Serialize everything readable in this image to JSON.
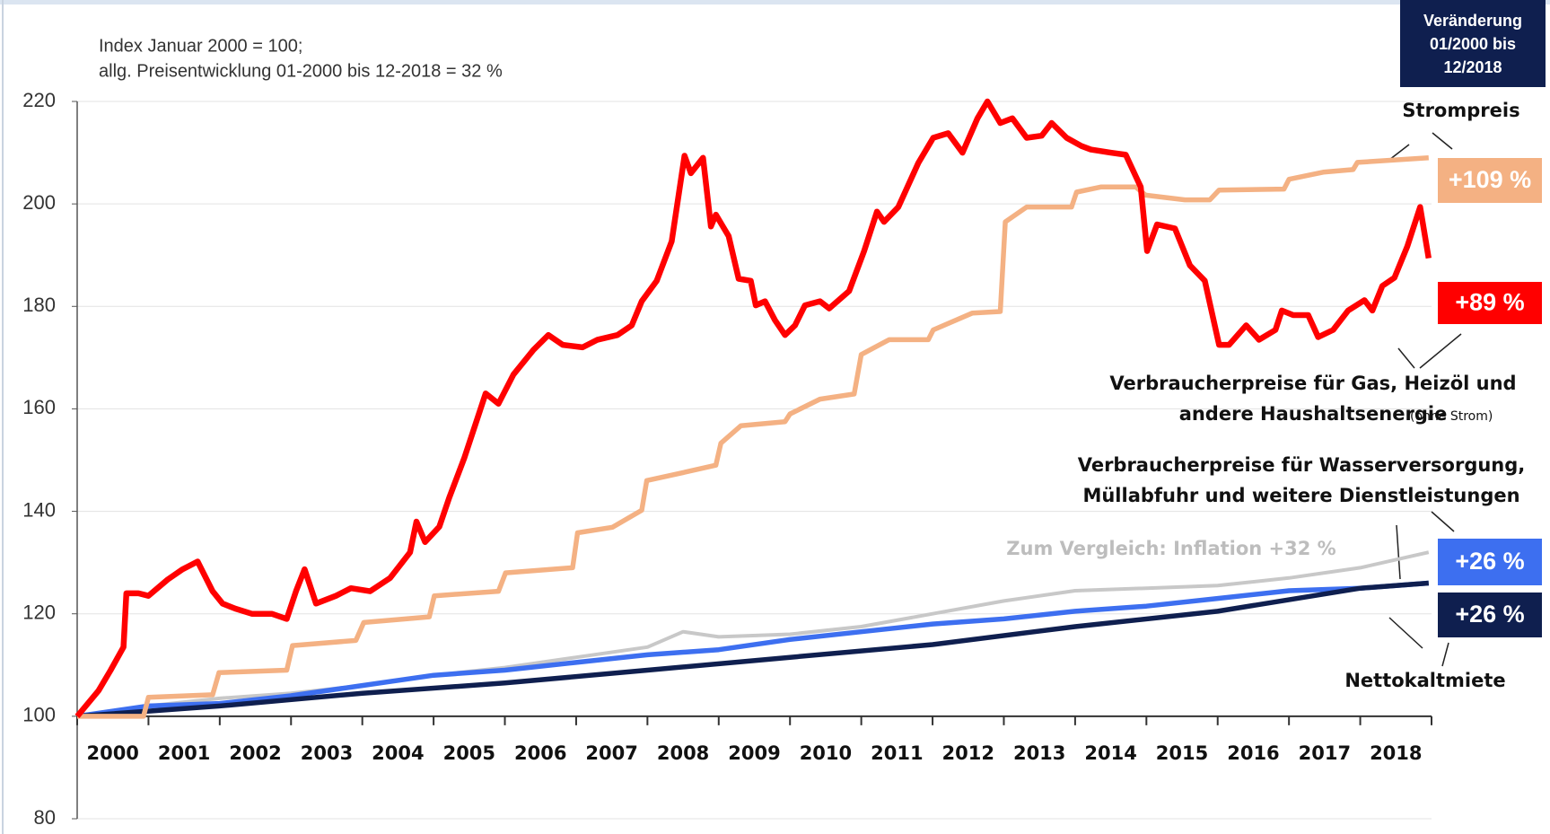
{
  "chart_data": {
    "type": "line",
    "notes": [
      "Index  Januar 2000 = 100;",
      "allg. Preisentwicklung 01-2000 bis 12-2018 = 32 %"
    ],
    "box_title": [
      "Veränderung",
      "01/2000 bis",
      "12/2018"
    ],
    "categories": [
      "2000",
      "2001",
      "2002",
      "2003",
      "2004",
      "2005",
      "2006",
      "2007",
      "2008",
      "2009",
      "2010",
      "2011",
      "2012",
      "2013",
      "2014",
      "2015",
      "2016",
      "2017",
      "2018"
    ],
    "xlim": [
      2000,
      2019
    ],
    "ylim": [
      80,
      220
    ],
    "yticks": [
      80,
      100,
      120,
      140,
      160,
      180,
      200,
      220
    ],
    "series": [
      {
        "name": [
          "Zum Vergleich: Inflation +32 %"
        ],
        "color": "#c8c8c8",
        "x": [
          2000,
          2001,
          2002,
          2003,
          2004,
          2005,
          2006,
          2007,
          2008,
          2008.5,
          2009,
          2010,
          2011,
          2012,
          2013,
          2014,
          2015,
          2016,
          2017,
          2018,
          2018.96
        ],
        "values": [
          100,
          102,
          103.5,
          104.5,
          106,
          108,
          109.5,
          111.5,
          113.5,
          116.5,
          115.5,
          116,
          117.5,
          120,
          122.5,
          124.5,
          125,
          125.5,
          127,
          129,
          132
        ]
      },
      {
        "name": [
          "Verbraucherpreise für  Wasserversorgung,",
          "Müllabfuhr und weitere Dienstleistungen"
        ],
        "color": "#3d6ff0",
        "change_label": "+26 %",
        "x": [
          2000,
          2001,
          2002,
          2003,
          2004,
          2005,
          2006,
          2007,
          2008,
          2009,
          2010,
          2011,
          2012,
          2013,
          2014,
          2015,
          2016,
          2017,
          2018,
          2018.96
        ],
        "values": [
          100,
          102,
          102.5,
          104,
          106,
          108,
          109,
          110.5,
          112,
          113,
          115,
          116.5,
          118,
          119,
          120.5,
          121.5,
          123,
          124.5,
          125,
          126
        ]
      },
      {
        "name": [
          "Nettokaltmiete"
        ],
        "color": "#0f1f4f",
        "change_label": "+26 %",
        "x": [
          2000,
          2002,
          2004,
          2006,
          2008,
          2010,
          2012,
          2014,
          2016,
          2018,
          2018.96
        ],
        "values": [
          100,
          102,
          104.5,
          106.5,
          109,
          111.5,
          114,
          117.5,
          120.5,
          125,
          126
        ]
      },
      {
        "name": [
          "Strompreis"
        ],
        "color": "#f4b183",
        "change_label": "+109 %",
        "x": [
          2000,
          2000.93,
          2001,
          2001.9,
          2001.99,
          2002.94,
          2003.02,
          2003.91,
          2004.02,
          2004.94,
          2005.01,
          2005.91,
          2006.01,
          2006.95,
          2007.02,
          2007.51,
          2007.92,
          2007.99,
          2008.48,
          2008.96,
          2009.03,
          2009.31,
          2009.93,
          2010,
          2010.42,
          2010.9,
          2011,
          2011.39,
          2011.94,
          2012.01,
          2012.56,
          2012.95,
          2013.02,
          2013.32,
          2013.95,
          2014.02,
          2014.36,
          2014.85,
          2014.99,
          2015.54,
          2015.89,
          2016.02,
          2016.93,
          2017,
          2017.48,
          2017.9,
          2017.96,
          2018.96
        ],
        "values": [
          100,
          100,
          103.7,
          104.2,
          108.5,
          109,
          113.8,
          114.8,
          118.3,
          119.4,
          123.5,
          124.4,
          128,
          129,
          135.8,
          136.9,
          140.2,
          146,
          147.5,
          149,
          153.3,
          156.7,
          157.5,
          159,
          161.9,
          162.9,
          170.6,
          173.5,
          173.5,
          175.4,
          178.7,
          179,
          196.5,
          199.4,
          199.4,
          202.3,
          203.3,
          203.3,
          201.7,
          200.8,
          200.8,
          202.7,
          202.9,
          204.8,
          206.2,
          206.7,
          208.1,
          209
        ]
      },
      {
        "name": [
          "Verbraucherpreise für Gas, Heizöl und",
          "andere Haushaltsenergie"
        ],
        "name_note": "(ohne Strom)",
        "color": "#ff0000",
        "change_label": "+89 %",
        "x": [
          2000,
          2000.3,
          2000.47,
          2000.65,
          2000.69,
          2000.86,
          2001,
          2001.27,
          2001.48,
          2001.69,
          2001.9,
          2002.04,
          2002.22,
          2002.45,
          2002.73,
          2002.94,
          2003.07,
          2003.19,
          2003.35,
          2003.63,
          2003.84,
          2004.11,
          2004.39,
          2004.67,
          2004.76,
          2004.88,
          2005.08,
          2005.22,
          2005.43,
          2005.73,
          2005.91,
          2006.12,
          2006.4,
          2006.61,
          2006.81,
          2007.09,
          2007.3,
          2007.58,
          2007.78,
          2007.92,
          2008.13,
          2008.34,
          2008.52,
          2008.61,
          2008.78,
          2008.89,
          2008.96,
          2009.14,
          2009.28,
          2009.45,
          2009.52,
          2009.65,
          2009.79,
          2009.93,
          2010.07,
          2010.21,
          2010.42,
          2010.55,
          2010.83,
          2011.04,
          2011.22,
          2011.32,
          2011.52,
          2011.8,
          2012.01,
          2012.22,
          2012.42,
          2012.63,
          2012.77,
          2012.95,
          2013.12,
          2013.32,
          2013.53,
          2013.67,
          2013.88,
          2014.09,
          2014.22,
          2014.5,
          2014.71,
          2014.92,
          2015.01,
          2015.15,
          2015.4,
          2015.61,
          2015.82,
          2016.02,
          2016.16,
          2016.4,
          2016.58,
          2016.81,
          2016.9,
          2017.06,
          2017.27,
          2017.41,
          2017.62,
          2017.83,
          2018.06,
          2018.17,
          2018.31,
          2018.48,
          2018.66,
          2018.84,
          2018.96
        ],
        "values": [
          100,
          105,
          109,
          113.5,
          124,
          124,
          123.5,
          126.7,
          128.7,
          130.2,
          124.4,
          122,
          121,
          120,
          120,
          119,
          124.4,
          128.7,
          122,
          123.5,
          125,
          124.4,
          127,
          132,
          138,
          134,
          137,
          142.7,
          150.4,
          163,
          161,
          166.7,
          171.5,
          174.4,
          172.5,
          172,
          173.5,
          174.4,
          176.3,
          181,
          185,
          192.7,
          209.4,
          206,
          209,
          195.6,
          197.9,
          193.7,
          185.4,
          185,
          180.2,
          181,
          177.3,
          174.4,
          176.3,
          180.2,
          181,
          179.6,
          183,
          190.8,
          198.5,
          196.5,
          199.4,
          208,
          212.9,
          213.8,
          210,
          216.7,
          220,
          215.8,
          216.7,
          212.9,
          213.3,
          215.8,
          212.9,
          211.3,
          210.6,
          210,
          209.6,
          203.3,
          190.8,
          196,
          195.2,
          188,
          185,
          172.5,
          172.5,
          176.3,
          173.5,
          175.4,
          179.2,
          178.3,
          178.3,
          174,
          175.4,
          179.2,
          181.2,
          179.2,
          184,
          185.6,
          191.7,
          199.4,
          189.4
        ]
      }
    ]
  }
}
